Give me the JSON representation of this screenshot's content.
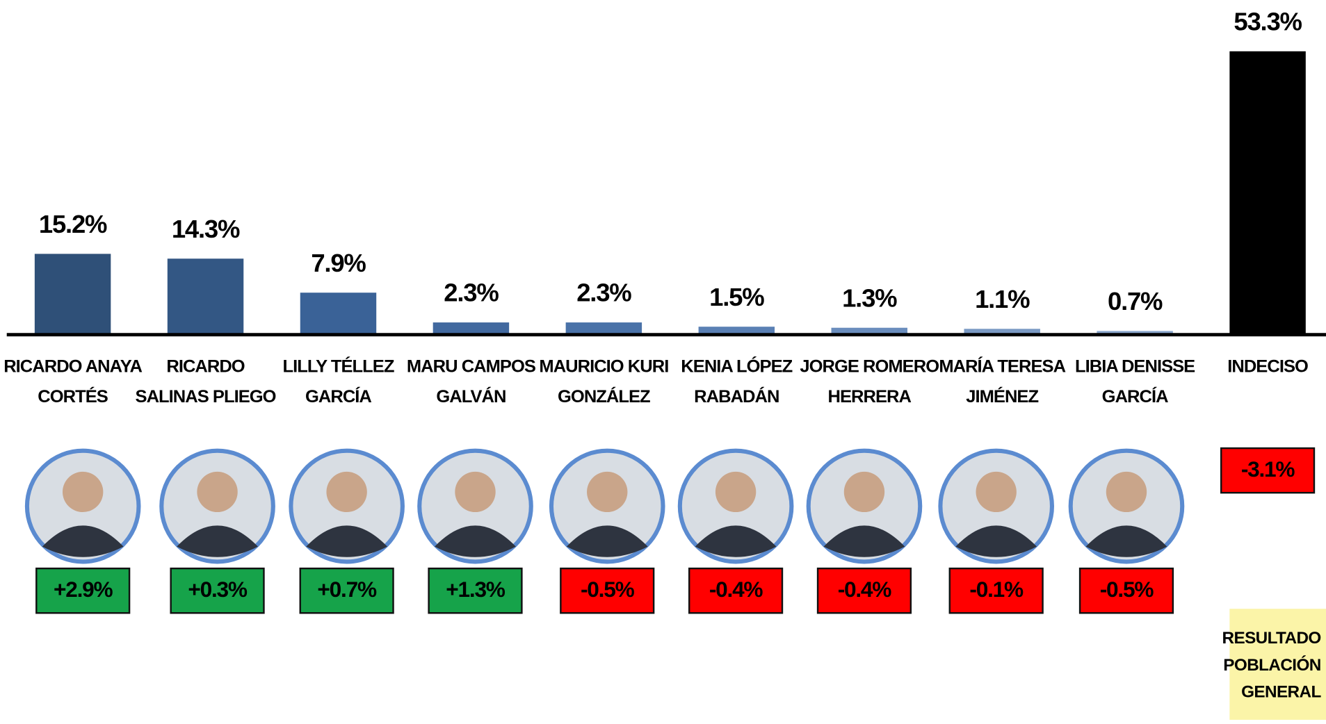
{
  "chart_data": {
    "type": "bar",
    "categories": [
      [
        "RICARDO ANAYA",
        "CORTÉS"
      ],
      [
        "RICARDO",
        "SALINAS PLIEGO"
      ],
      [
        "LILLY TÉLLEZ",
        "GARCÍA"
      ],
      [
        "MARU CAMPOS",
        "GALVÁN"
      ],
      [
        "MAURICIO KURI",
        "GONZÁLEZ"
      ],
      [
        "KENIA LÓPEZ",
        "RABADÁN"
      ],
      [
        "JORGE ROMERO",
        "HERRERA"
      ],
      [
        "MARÍA TERESA",
        "JIMÉNEZ"
      ],
      [
        "LIBIA DENISSE",
        "GARCÍA"
      ],
      [
        "INDECISO"
      ]
    ],
    "values": [
      15.2,
      14.3,
      7.9,
      2.3,
      2.3,
      1.5,
      1.3,
      1.1,
      0.7,
      53.3
    ],
    "value_labels": [
      "15.2%",
      "14.3%",
      "7.9%",
      "2.3%",
      "2.3%",
      "1.5%",
      "1.3%",
      "1.1%",
      "0.7%",
      "53.3%"
    ],
    "colors": [
      "#2f5078",
      "#335784",
      "#3a6297",
      "#42699f",
      "#4a72a8",
      "#5a80b4",
      "#6a8dbd",
      "#7b9ac4",
      "#8aa6cc",
      "#000000"
    ],
    "changes": [
      2.9,
      0.3,
      0.7,
      1.3,
      -0.5,
      -0.4,
      -0.4,
      -0.1,
      -0.5,
      -3.1
    ],
    "change_labels": [
      "+2.9%",
      "+0.3%",
      "+0.7%",
      "+1.3%",
      "-0.5%",
      "-0.4%",
      "-0.4%",
      "-0.1%",
      "-0.5%",
      "-3.1%"
    ],
    "note": [
      "RESULTADO",
      "POBLACIÓN",
      "GENERAL"
    ]
  }
}
